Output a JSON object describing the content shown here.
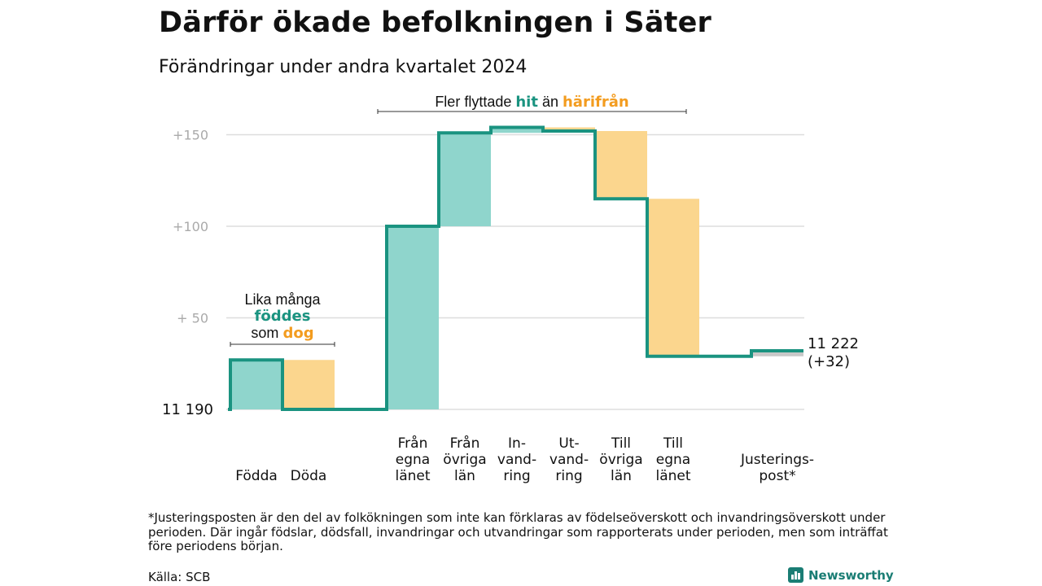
{
  "title": "Därför ökade befolkningen i Säter",
  "subtitle": "Förändringar under andra kvartalet 2024",
  "colors": {
    "teal": "#1a9380",
    "teal_fill": "#8fd5cc",
    "orange": "#f39c1f",
    "orange_fill": "#fbd68e",
    "grid": "#dddddd",
    "adjust": "#c8c8c8"
  },
  "chart_data": {
    "type": "waterfall",
    "baseline_label": "11  190",
    "end_label": [
      "11 222",
      "(+32)"
    ],
    "y_ticks": [
      {
        "value": 50,
        "label": "+  50"
      },
      {
        "value": 100,
        "label": "+100"
      },
      {
        "value": 150,
        "label": "+150"
      }
    ],
    "ylim": [
      0,
      160
    ],
    "grid": true,
    "steps": [
      {
        "key": "fodda",
        "label": [
          "Födda"
        ],
        "change": 27,
        "kind": "in"
      },
      {
        "key": "doda",
        "label": [
          "Döda"
        ],
        "change": -27,
        "kind": "out"
      },
      {
        "key": "gap",
        "label": [],
        "change": 0,
        "kind": "none"
      },
      {
        "key": "fran_egna",
        "label": [
          "Från",
          "egna",
          "länet"
        ],
        "change": 100,
        "kind": "in"
      },
      {
        "key": "fran_ovriga",
        "label": [
          "Från",
          "övriga",
          "län"
        ],
        "change": 51,
        "kind": "in"
      },
      {
        "key": "invandring",
        "label": [
          "In-",
          "vand-",
          "ring"
        ],
        "change": 3,
        "kind": "in"
      },
      {
        "key": "utvandring",
        "label": [
          "Ut-",
          "vand-",
          "ring"
        ],
        "change": -2,
        "kind": "out"
      },
      {
        "key": "till_ovriga",
        "label": [
          "Till",
          "övriga",
          "län"
        ],
        "change": -37,
        "kind": "out"
      },
      {
        "key": "till_egna",
        "label": [
          "Till",
          "egna",
          "länet"
        ],
        "change": -86,
        "kind": "out"
      },
      {
        "key": "gap2",
        "label": [],
        "change": 0,
        "kind": "none"
      },
      {
        "key": "justering",
        "label": [
          "Justerings-",
          "post*"
        ],
        "change": 3,
        "kind": "adjust"
      }
    ],
    "annotations": {
      "births_deaths": {
        "line1": "Lika många",
        "teal_word": "föddes",
        "prefix": "som ",
        "orange_word": "dog"
      },
      "migration": {
        "prefix": "Fler flyttade ",
        "teal_word": "hit",
        "middle": " än ",
        "orange_word": "härifrån"
      }
    }
  },
  "footnote": "*Justeringsposten är den del av folkökningen som inte kan förklaras av födelseöverskott och invandringsöverskott under perioden. Där ingår födslar, dödsfall, invandringar och utvandringar som rapporterats under perioden, men som inträffat före periodens början.",
  "source": "Källa: SCB",
  "brand": "Newsworthy"
}
